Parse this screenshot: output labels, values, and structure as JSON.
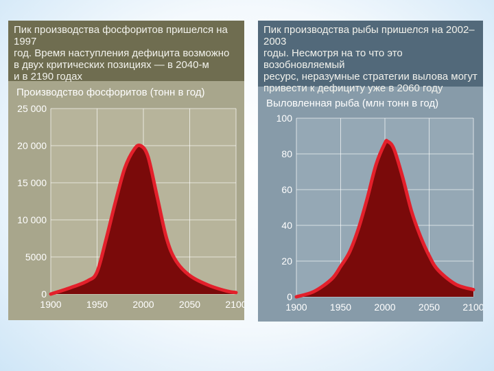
{
  "panels": {
    "left": {
      "header": [
        "Пик производства фосфоритов пришелся на 1997",
        "год. Время наступления дефицита возможно",
        "в двух критических позициях — в 2040-м",
        "и в 2190 годах"
      ],
      "chart_title": "Производство фосфоритов (тонн в год)"
    },
    "right": {
      "header": [
        "Пик производства рыбы пришелся на 2002–2003",
        "годы. Несмотря на то что это возобновляемый",
        "ресурс, неразумные стратегии вылова могут",
        "привести к дефициту уже в 2060 году"
      ],
      "chart_title": "Выловленная рыба (млн тонн в год)"
    }
  },
  "colors": {
    "fill": "#7a0a0a",
    "line": "#e3202b",
    "plot_bg_left": "#b7b49b",
    "plot_bg_right": "#95a8b5",
    "grid": "#ffffff"
  },
  "chart_data": [
    {
      "type": "area",
      "title": "Производство фосфоритов (тонн в год)",
      "xlabel": "",
      "ylabel": "",
      "x": [
        1900,
        1920,
        1940,
        1950,
        1960,
        1970,
        1980,
        1990,
        1997,
        2005,
        2015,
        2025,
        2035,
        2050,
        2070,
        2090,
        2100
      ],
      "y": [
        0,
        800,
        1800,
        3000,
        7500,
        12500,
        17000,
        19500,
        20000,
        18500,
        13000,
        7500,
        4500,
        2500,
        1200,
        400,
        200
      ],
      "xlim": [
        1900,
        2100
      ],
      "ylim": [
        0,
        25000
      ],
      "xticks": [
        1900,
        1950,
        2000,
        2050,
        2100
      ],
      "yticks": [
        0,
        5000,
        10000,
        15000,
        20000,
        25000
      ],
      "ytick_labels": [
        "0",
        "5000",
        "10 000",
        "15 000",
        "20 000",
        "25 000"
      ],
      "grid": true
    },
    {
      "type": "area",
      "title": "Выловленная рыба (млн тонн в год)",
      "xlabel": "",
      "ylabel": "",
      "x": [
        1900,
        1920,
        1940,
        1950,
        1960,
        1970,
        1980,
        1990,
        2000,
        2003,
        2010,
        2020,
        2030,
        2040,
        2050,
        2060,
        2080,
        2100
      ],
      "y": [
        0,
        3,
        10,
        17,
        25,
        38,
        55,
        74,
        86,
        87,
        83,
        67,
        48,
        34,
        23,
        15,
        7,
        4
      ],
      "xlim": [
        1900,
        2100
      ],
      "ylim": [
        0,
        100
      ],
      "xticks": [
        1900,
        1950,
        2000,
        2050,
        2100
      ],
      "yticks": [
        0,
        20,
        40,
        60,
        80,
        100
      ],
      "ytick_labels": [
        "0",
        "20",
        "40",
        "60",
        "80",
        "100"
      ],
      "grid": true
    }
  ]
}
